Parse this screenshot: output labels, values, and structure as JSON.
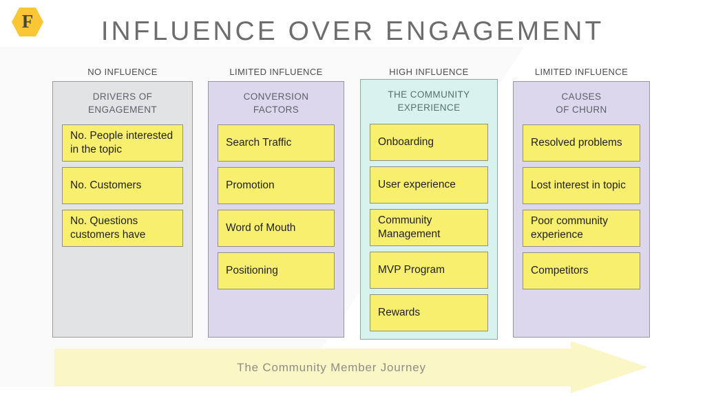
{
  "logo": {
    "letter": "F",
    "bg_color": "#f9c636"
  },
  "title": "INFLUENCE OVER ENGAGEMENT",
  "columns": [
    {
      "influence_label": "NO INFLUENCE",
      "header_line1": "DRIVERS OF",
      "header_line2": "ENGAGEMENT",
      "bg_color": "#e2e3e5",
      "border_color": "#9b9b9b",
      "cards": [
        "No. People interested in the topic",
        "No. Customers",
        "No. Questions customers have"
      ]
    },
    {
      "influence_label": "LIMITED INFLUENCE",
      "header_line1": "CONVERSION",
      "header_line2": "FACTORS",
      "bg_color": "#dcd7ed",
      "border_color": "#98949f",
      "cards": [
        "Search Traffic",
        "Promotion",
        "Word of Mouth",
        "Positioning"
      ]
    },
    {
      "influence_label": "HIGH INFLUENCE",
      "header_line1": "THE COMMUNITY",
      "header_line2": "EXPERIENCE",
      "bg_color": "#d8f3ed",
      "border_color": "#8fa6a1",
      "cards": [
        "Onboarding",
        "User experience",
        "Community Management",
        "MVP Program",
        "Rewards"
      ]
    },
    {
      "influence_label": "LIMITED INFLUENCE",
      "header_line1": "CAUSES",
      "header_line2": "OF CHURN",
      "bg_color": "#dcd7ed",
      "border_color": "#98949f",
      "cards": [
        "Resolved problems",
        "Lost interest in topic",
        "Poor community experience",
        "Competitors"
      ]
    }
  ],
  "card_style": {
    "bg_color": "#f8ef6e",
    "border_color": "#8f8f85",
    "text_color": "#1f1f1f"
  },
  "arrow": {
    "label": "The Community Member Journey",
    "color": "#fbf6c6",
    "text_color": "#8d8d85"
  }
}
